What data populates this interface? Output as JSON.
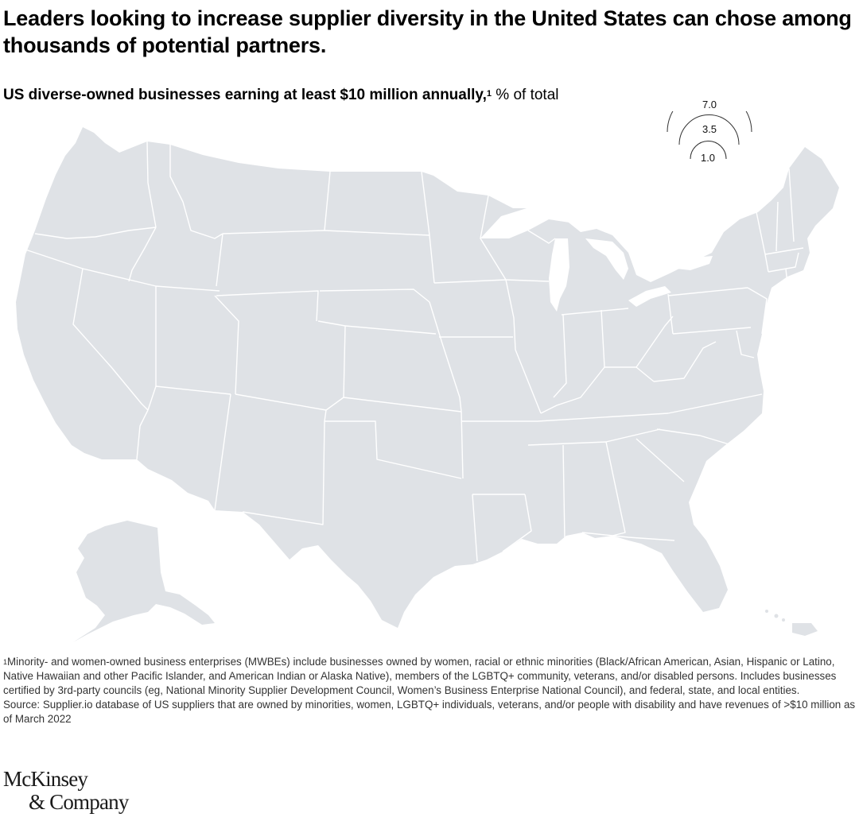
{
  "headline": "Leaders looking to increase supplier diversity in the United States can chose among thousands of potential partners.",
  "subtitle": {
    "text": "US diverse-owned businesses earning at least $10 million annually,",
    "footnote_ref": "1",
    "unit": "% of total"
  },
  "legend": {
    "type": "bubble-size",
    "values": [
      "7.0",
      "3.5",
      "1.0"
    ]
  },
  "colors": {
    "land": "#dfe2e6",
    "borders": "#ffffff",
    "legend_stroke": "#333333",
    "text": "#000000"
  },
  "footnotes": {
    "note_ref": "1",
    "note_text": "Minority- and women-owned business enterprises (MWBEs) include businesses owned by women, racial or ethnic minorities (Black/African American, Asian, Hispanic or Latino, Native Hawaiian and other Pacific Islander, and American Indian or Alaska Native), members of the LGBTQ+ community, veterans, and/or disabled persons. Includes businesses certified by 3rd-party councils (eg, National Minority Supplier Development Council, Women’s Business Enterprise National Council), and federal, state, and local entities.",
    "source": "Source: Supplier.io database of US suppliers that are owned by minorities, women, LGBTQ+ individuals, veterans, and/or people with disability and have revenues of >$10 million as of March 2022"
  },
  "logo": {
    "line1": "McKinsey",
    "line2": "& Company"
  }
}
